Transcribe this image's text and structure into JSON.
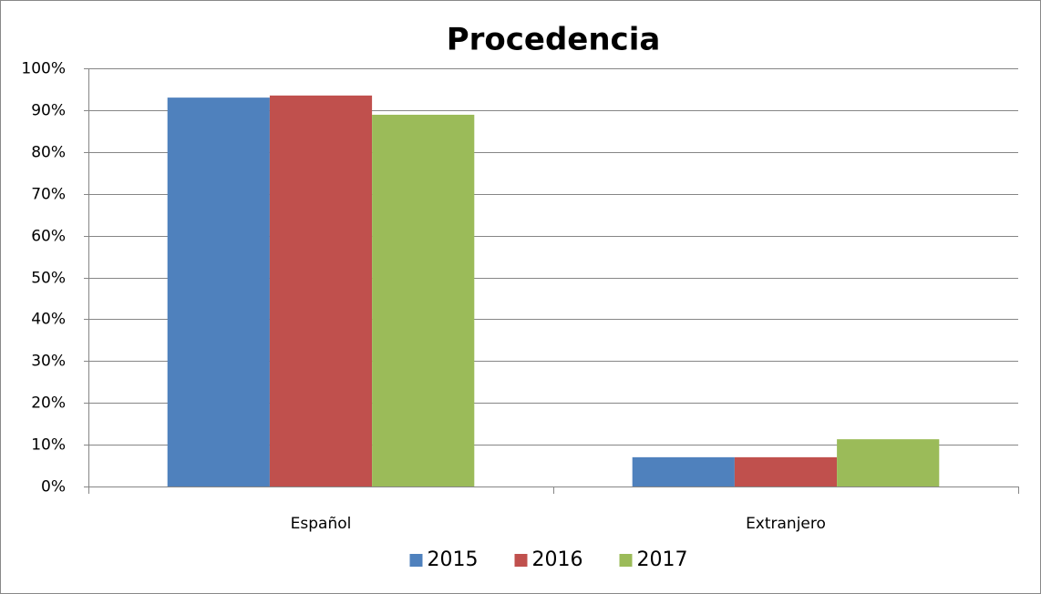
{
  "chart_data": {
    "type": "bar",
    "title": "Procedencia",
    "categories": [
      "Español",
      "Extranjero"
    ],
    "series": [
      {
        "name": "2015",
        "color": "#4f81bd",
        "values": [
          93.0,
          7.0
        ]
      },
      {
        "name": "2016",
        "color": "#c0504d",
        "values": [
          93.5,
          7.0
        ]
      },
      {
        "name": "2017",
        "color": "#9bbb59",
        "values": [
          88.9,
          11.3
        ]
      }
    ],
    "ylim": [
      0,
      100
    ],
    "yticks": [
      {
        "value": 0,
        "label": "0%"
      },
      {
        "value": 10,
        "label": "10%"
      },
      {
        "value": 20,
        "label": "20%"
      },
      {
        "value": 30,
        "label": "30%"
      },
      {
        "value": 40,
        "label": "40%"
      },
      {
        "value": 50,
        "label": "50%"
      },
      {
        "value": 60,
        "label": "60%"
      },
      {
        "value": 70,
        "label": "70%"
      },
      {
        "value": 80,
        "label": "80%"
      },
      {
        "value": 90,
        "label": "90%"
      },
      {
        "value": 100,
        "label": "100%"
      }
    ],
    "grid": true,
    "legend": "bottom"
  }
}
